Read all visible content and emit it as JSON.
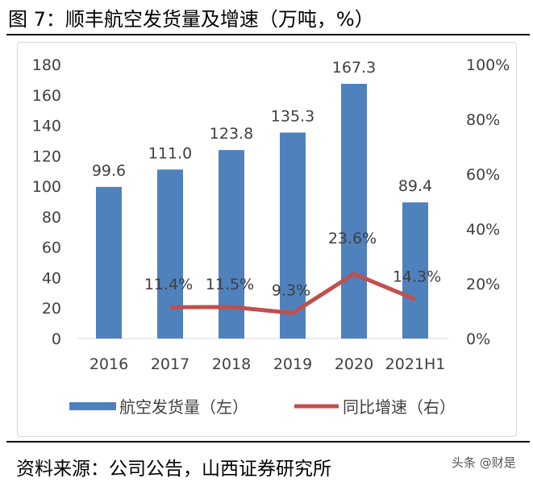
{
  "title": "图 7：顺丰航空发货量及增速（万吨，%）",
  "source": "资料来源：公司公告，山西证券研究所",
  "watermark": "头条 @财是",
  "colors": {
    "bar": "#4f81bd",
    "line": "#c0504d"
  },
  "chart_data": {
    "type": "bar",
    "categories": [
      "2016",
      "2017",
      "2018",
      "2019",
      "2020",
      "2021H1"
    ],
    "series": [
      {
        "name": "航空发货量（左）",
        "type": "bar",
        "axis": "left",
        "values": [
          99.6,
          111.0,
          123.8,
          135.3,
          167.3,
          89.4
        ],
        "labels": [
          "99.6",
          "111.0",
          "123.8",
          "135.3",
          "167.3",
          "89.4"
        ]
      },
      {
        "name": "同比增速（右）",
        "type": "line",
        "axis": "right",
        "values": [
          null,
          11.4,
          11.5,
          9.3,
          23.6,
          14.3
        ],
        "labels": [
          "",
          "11.4%",
          "11.5%",
          "9.3%",
          "23.6%",
          "14.3%"
        ]
      }
    ],
    "left_axis": {
      "ylim": [
        0,
        180
      ],
      "ticks": [
        "0",
        "20",
        "40",
        "60",
        "80",
        "100",
        "120",
        "140",
        "160",
        "180"
      ]
    },
    "right_axis": {
      "ylim": [
        0,
        100
      ],
      "ticks": [
        "0%",
        "20%",
        "40%",
        "60%",
        "80%",
        "100%"
      ]
    },
    "legend": "bottom",
    "grid": false
  }
}
